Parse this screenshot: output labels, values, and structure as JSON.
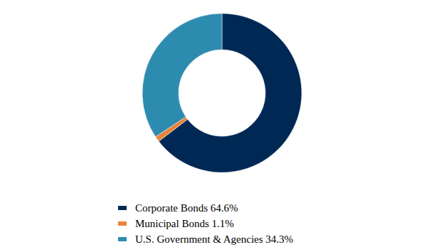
{
  "chart_data": {
    "type": "pie",
    "categories": [
      "Corporate Bonds 64.6%",
      "Municipal Bonds 1.1%",
      "U.S. Government & Agencies 34.3%"
    ],
    "values": [
      64.6,
      1.1,
      34.3
    ],
    "colors": [
      "#002855",
      "#e8833a",
      "#2e8bb0"
    ]
  }
}
